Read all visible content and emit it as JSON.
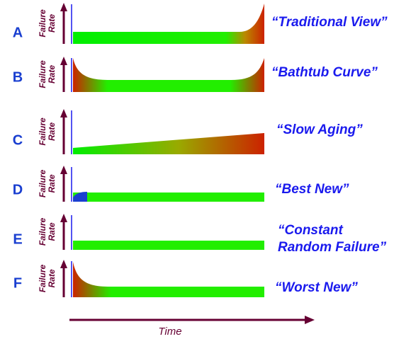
{
  "panels": [
    {
      "letter": "A",
      "y_label": [
        "Failure",
        "Rate"
      ],
      "caption": [
        "“Traditional View”"
      ]
    },
    {
      "letter": "B",
      "y_label": [
        "Failure",
        "Rate"
      ],
      "caption": [
        "“Bathtub Curve”"
      ]
    },
    {
      "letter": "C",
      "y_label": [
        "Failure",
        "Rate"
      ],
      "caption": [
        "“Slow Aging”"
      ]
    },
    {
      "letter": "D",
      "y_label": [
        "Failure",
        "Rate"
      ],
      "caption": [
        "“Best New”"
      ]
    },
    {
      "letter": "E",
      "y_label": [
        "Failure",
        "Rate"
      ],
      "caption": [
        "“Constant",
        "Random Failure”"
      ]
    },
    {
      "letter": "F",
      "y_label": [
        "Failure",
        "Rate"
      ],
      "caption": [
        "“Worst New”"
      ]
    }
  ],
  "x_label": "Time"
}
